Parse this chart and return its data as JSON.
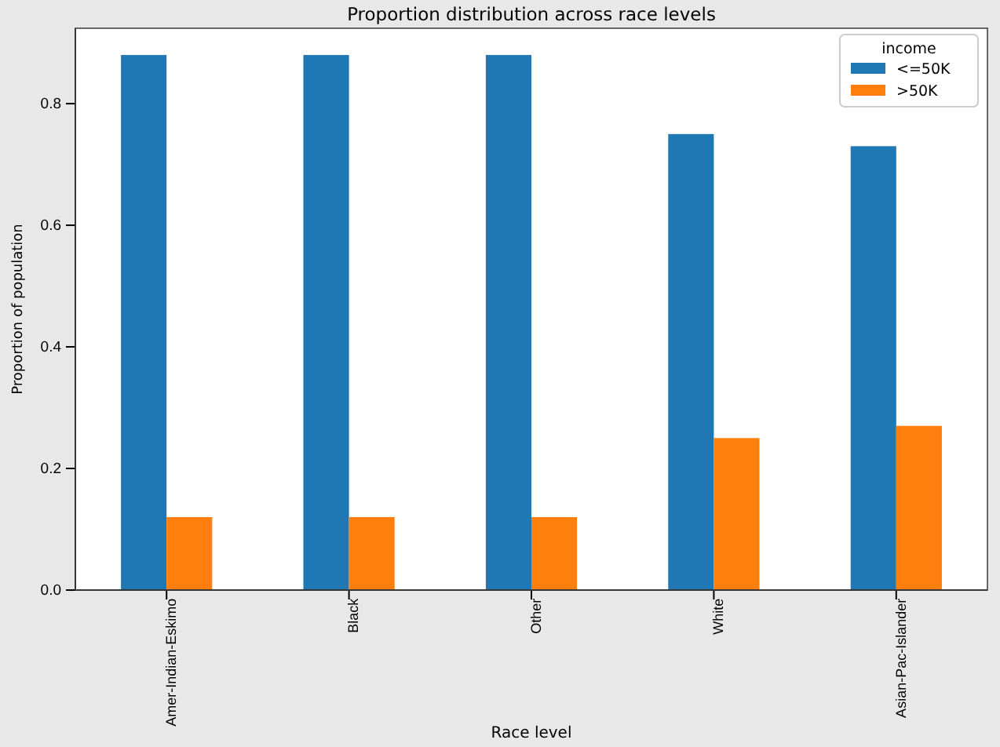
{
  "chart_data": {
    "type": "bar",
    "title": "Proportion distribution across race levels",
    "xlabel": "Race level",
    "ylabel": "Proportion of population",
    "legend_title": "income",
    "categories": [
      "Amer-Indian-Eskimo",
      "Black",
      "Other",
      "White",
      "Asian-Pac-Islander"
    ],
    "series": [
      {
        "name": "<=50K",
        "color": "#1f77b4",
        "values": [
          0.88,
          0.88,
          0.88,
          0.75,
          0.73
        ]
      },
      {
        "name": ">50K",
        "color": "#ff7f0e",
        "values": [
          0.12,
          0.12,
          0.12,
          0.25,
          0.27
        ]
      }
    ],
    "ylim": [
      0,
      0.924
    ],
    "yticks": [
      {
        "value": 0,
        "label": "0.0"
      },
      {
        "value": 0.2,
        "label": "0.2"
      },
      {
        "value": 0.4,
        "label": "0.4"
      },
      {
        "value": 0.6,
        "label": "0.6"
      },
      {
        "value": 0.8,
        "label": "0.8"
      }
    ],
    "legend": "top right"
  }
}
